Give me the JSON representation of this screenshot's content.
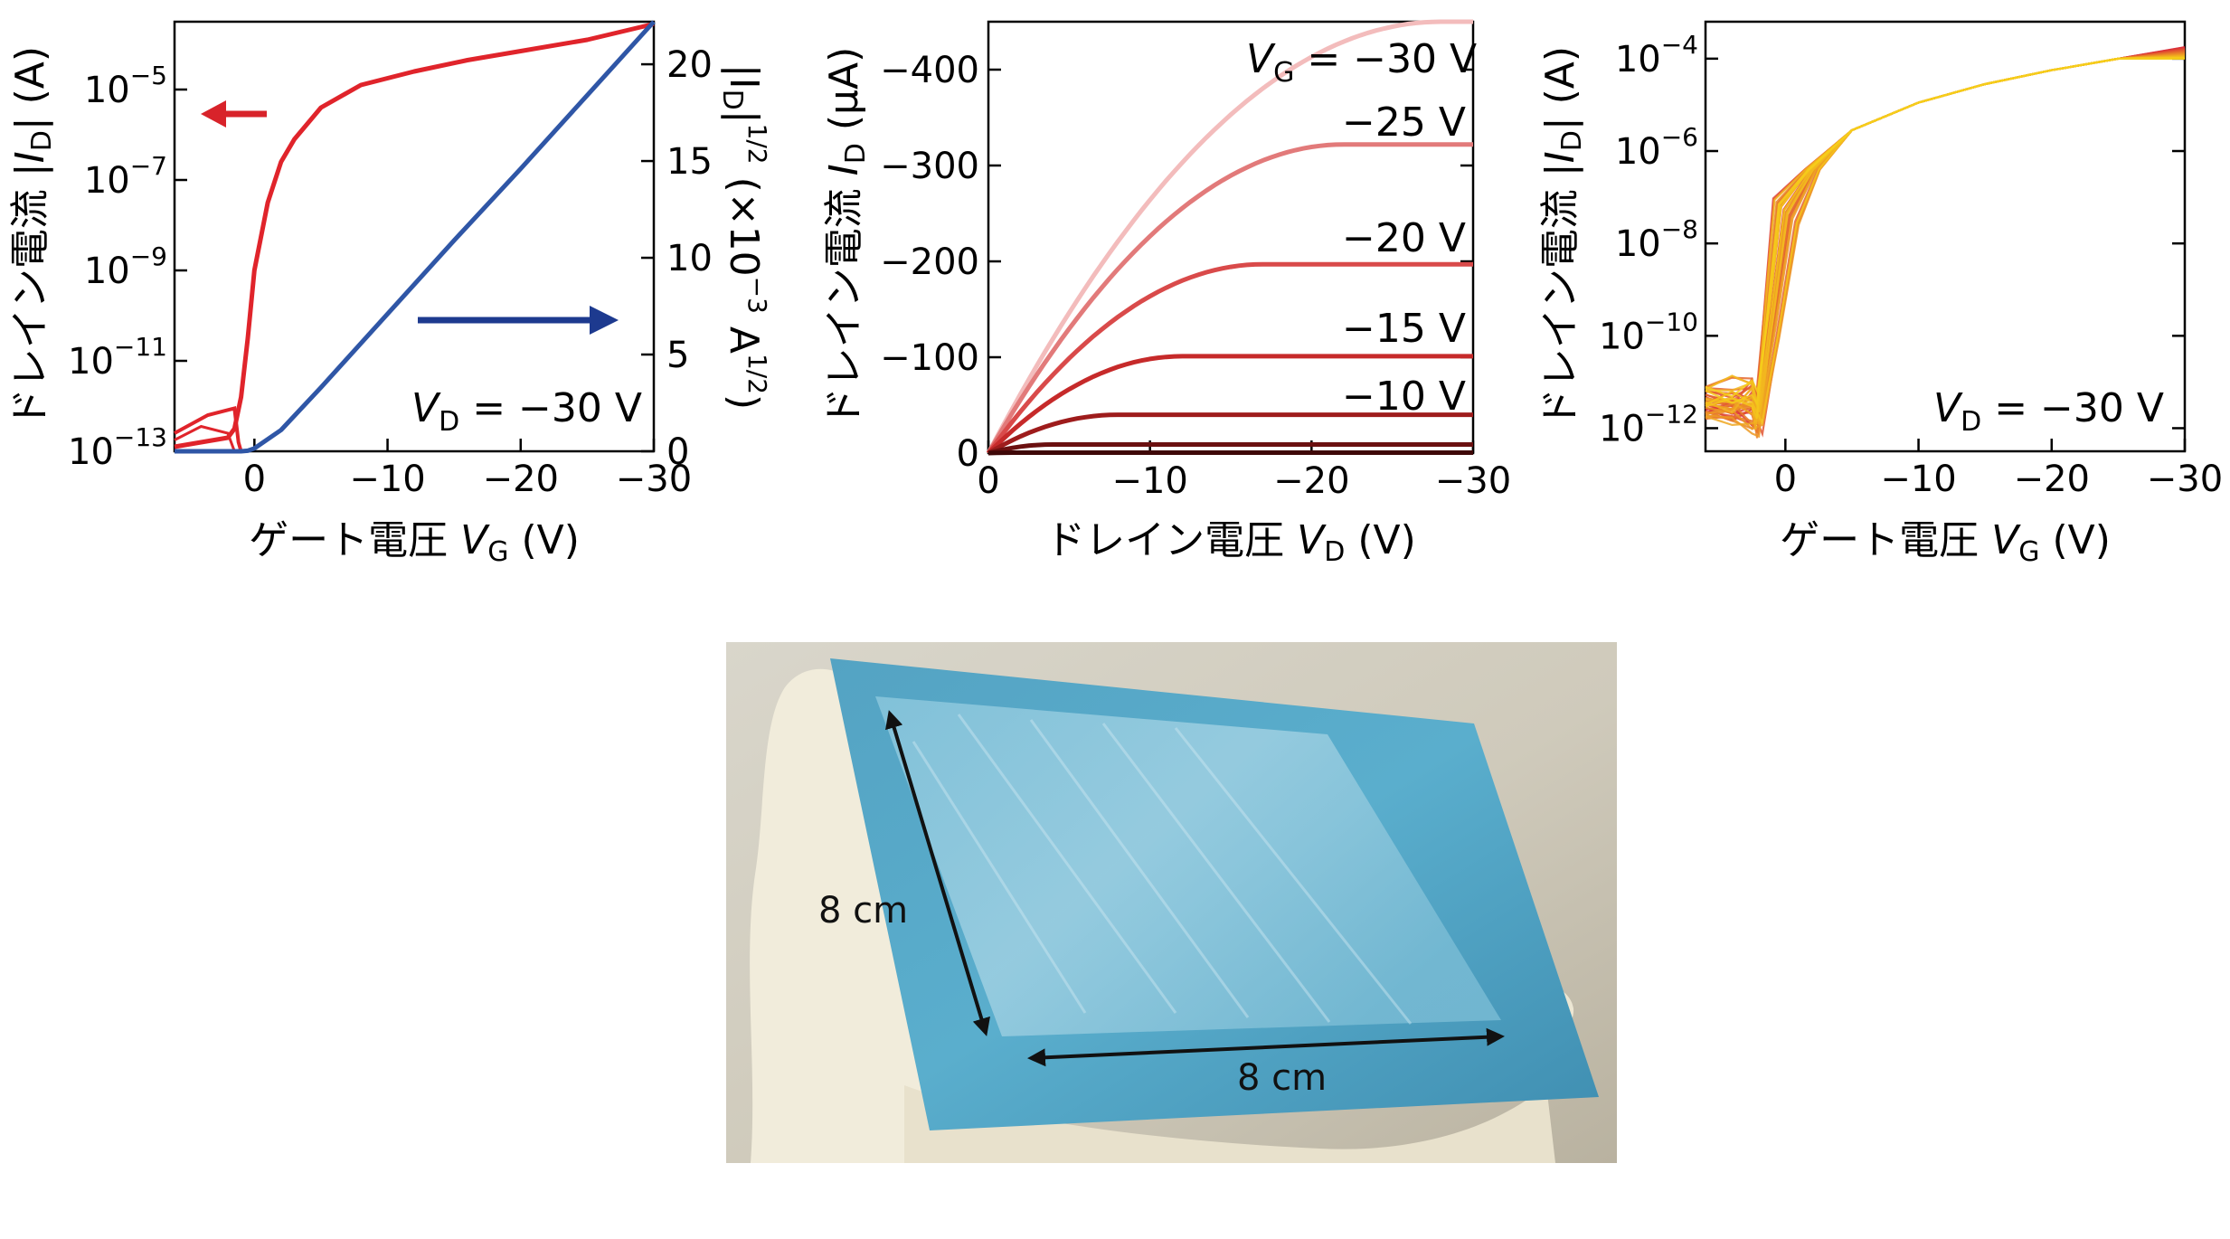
{
  "figure_labels": {
    "gate_voltage_label": "ゲート電圧 ",
    "gate_voltage_var": "V",
    "gate_voltage_sub": "G",
    "gate_voltage_unit": " (V)",
    "drain_voltage_label": "ドレイン電圧 ",
    "drain_voltage_var": "V",
    "drain_voltage_sub": "D",
    "drain_voltage_unit": " (V)",
    "drain_current_log_label": "ドレイン電流 |",
    "drain_current_log_var": "I",
    "drain_current_log_sub": "D",
    "drain_current_log_unit": "| (A)",
    "sqrt_label_pre": "|I",
    "sqrt_label_sub": "D",
    "sqrt_label_mid": "|",
    "sqrt_label_sup": "1/2",
    "sqrt_label_unit": " (×10",
    "sqrt_label_unit_sup": "−3",
    "sqrt_label_unit2": " A",
    "sqrt_label_unit2_sup": "1/2",
    "sqrt_label_close": ")",
    "drain_current_lin_label": "ドレイン電流 ",
    "drain_current_lin_var": "I",
    "drain_current_lin_sub": "D",
    "drain_current_lin_unit": " (μA)",
    "vd_annotation_var": "V",
    "vd_annotation_sub": "D",
    "vd_annotation_val": " = −30 V",
    "vg_annotation_var": "V",
    "vg_annotation_sub": "G",
    "vg_annotation_val": " = −30 V"
  },
  "photo": {
    "dim_vertical": "8 cm",
    "dim_horizontal": "8 cm"
  },
  "colors": {
    "transfer_log": "#e0242b",
    "transfer_sqrt": "#2f56a6",
    "arrow_red": "#d8232a",
    "arrow_blue": "#1d3a8f"
  },
  "chart_data": [
    {
      "type": "line",
      "panel": "transfer",
      "x_ticks": [
        "0",
        "−10",
        "−20",
        "−30"
      ],
      "x_tick_values": [
        0,
        -10,
        -20,
        -30
      ],
      "xlim": [
        6,
        -30
      ],
      "y_left_ticks": [
        "10",
        "10",
        "10",
        "10",
        "10"
      ],
      "y_left_tick_sups": [
        "−13",
        "−11",
        "−9",
        "−7",
        "−5"
      ],
      "y_left_tick_exps": [
        -13,
        -11,
        -9,
        -7,
        -5
      ],
      "y_left_log_range": [
        -13,
        -3.5
      ],
      "y_right_ticks": [
        "0",
        "5",
        "10",
        "15",
        "20"
      ],
      "y_right_tick_values": [
        0,
        5,
        10,
        15,
        20
      ],
      "y_right_range": [
        0,
        22.2
      ],
      "series": [
        {
          "axis": "left-log",
          "x": [
            6,
            4,
            2,
            1.5,
            1,
            0.5,
            0,
            -1,
            -2,
            -3,
            -5,
            -8,
            -12,
            -16,
            -20,
            -25,
            -30
          ],
          "y_exp": [
            -12.9,
            -12.8,
            -12.7,
            -12.5,
            -11.8,
            -10.5,
            -9.0,
            -7.5,
            -6.6,
            -6.1,
            -5.4,
            -4.9,
            -4.6,
            -4.35,
            -4.15,
            -3.9,
            -3.55
          ]
        },
        {
          "axis": "right-linear",
          "x": [
            1,
            0.5,
            0,
            -2,
            -5,
            -10,
            -15,
            -20,
            -25,
            -30
          ],
          "y": [
            0,
            0.03,
            0.15,
            1.1,
            3.3,
            7.1,
            10.9,
            14.6,
            18.4,
            22.2
          ]
        }
      ]
    },
    {
      "type": "line",
      "panel": "output",
      "x_ticks": [
        "0",
        "−10",
        "−20",
        "−30"
      ],
      "x_tick_values": [
        0,
        -10,
        -20,
        -30
      ],
      "xlim": [
        0,
        -30
      ],
      "y_ticks": [
        "0",
        "−100",
        "−200",
        "−300",
        "−400"
      ],
      "y_tick_values": [
        0,
        -100,
        -200,
        -300,
        -400
      ],
      "ylim": [
        0,
        -450
      ],
      "curve_labels": [
        "",
        "−25 V",
        "−20 V",
        "−15 V",
        "−10 V"
      ],
      "series": [
        {
          "vg": -30,
          "saturation": -450,
          "vsat": -28,
          "color": "#f3bcbc"
        },
        {
          "vg": -25,
          "saturation": -322,
          "vsat": -22,
          "color": "#e27a7a"
        },
        {
          "vg": -20,
          "saturation": -197,
          "vsat": -17,
          "color": "#d94a4a"
        },
        {
          "vg": -15,
          "saturation": -101,
          "vsat": -12,
          "color": "#c62a2a"
        },
        {
          "vg": -10,
          "saturation": -40,
          "vsat": -8,
          "color": "#9e1c1c"
        },
        {
          "vg": -5,
          "saturation": -9,
          "vsat": -4,
          "color": "#6b1010"
        },
        {
          "vg": 0,
          "saturation": -0.5,
          "vsat": -2,
          "color": "#3f0808"
        }
      ]
    },
    {
      "type": "line",
      "panel": "transfer-devices",
      "x_ticks": [
        "0",
        "−10",
        "−20",
        "−30"
      ],
      "x_tick_values": [
        0,
        -10,
        -20,
        -30
      ],
      "xlim": [
        6,
        -30
      ],
      "y_ticks": [
        "10",
        "10",
        "10",
        "10",
        "10"
      ],
      "y_tick_sups": [
        "−12",
        "−10",
        "−8",
        "−6",
        "−4"
      ],
      "y_tick_exps": [
        -12,
        -10,
        -8,
        -6,
        -4
      ],
      "y_log_range": [
        -12.5,
        -3.2
      ],
      "curve_count": 40,
      "color_range": [
        "#d9263a",
        "#f6ce1a"
      ]
    }
  ]
}
